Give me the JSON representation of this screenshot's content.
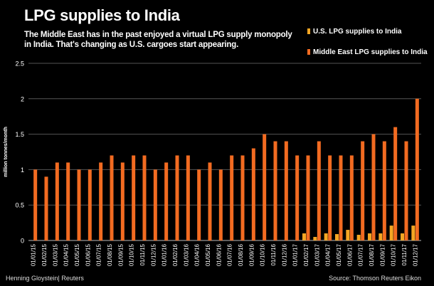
{
  "header": {
    "title": "LPG supplies to India",
    "subtitle": "The Middle East has in the past enjoyed a virtual LPG supply monopoly in India. That's changing as U.S. cargoes start appearing."
  },
  "legend": {
    "items": [
      {
        "label": "U.S. LPG supplies to India",
        "color": "#f5a623"
      },
      {
        "label": "Middle East LPG supplies to India",
        "color": "#f26b21"
      }
    ]
  },
  "footer": {
    "author": "Henning Gloystein| Reuters",
    "source": "Source: Thomson Reuters Eikon"
  },
  "chart_data": {
    "type": "bar",
    "ylabel": "million tonnes/month",
    "ylim": [
      0,
      2.5
    ],
    "yticks": [
      "0",
      "0.5",
      "1",
      "1.5",
      "2",
      "2.5"
    ],
    "grid": true,
    "legend_position": "top-right",
    "categories": [
      "01/01/15",
      "01/02/15",
      "01/03/15",
      "01/04/15",
      "01/05/15",
      "01/06/15",
      "01/07/15",
      "01/08/15",
      "01/09/15",
      "01/10/15",
      "01/11/15",
      "01/12/15",
      "01/01/16",
      "01/02/16",
      "01/03/16",
      "01/04/16",
      "01/05/16",
      "01/06/16",
      "01/07/16",
      "01/08/16",
      "01/09/16",
      "01/10/16",
      "01/11/16",
      "01/12/16",
      "01/01/17",
      "01/02/17",
      "01/03/17",
      "01/04/17",
      "01/05/17",
      "01/06/17",
      "01/07/17",
      "01/08/17",
      "01/09/17",
      "01/10/17",
      "01/11/17",
      "01/12/17"
    ],
    "series": [
      {
        "name": "U.S. LPG supplies to India",
        "color": "#f5a623",
        "values": [
          0,
          0,
          0,
          0,
          0,
          0,
          0,
          0,
          0,
          0,
          0,
          0,
          0,
          0,
          0,
          0,
          0,
          0,
          0,
          0,
          0,
          0,
          0,
          0,
          0,
          0.1,
          0.05,
          0.1,
          0.09,
          0.15,
          0.08,
          0.1,
          0.1,
          0.21,
          0.1,
          0.21
        ]
      },
      {
        "name": "Middle East LPG supplies to India",
        "color": "#f26b21",
        "values": [
          1.0,
          0.9,
          1.1,
          1.1,
          1.0,
          1.0,
          1.1,
          1.2,
          1.1,
          1.2,
          1.2,
          1.0,
          1.1,
          1.2,
          1.2,
          1.0,
          1.1,
          1.0,
          1.2,
          1.2,
          1.3,
          1.5,
          1.4,
          1.4,
          1.2,
          1.2,
          1.4,
          1.2,
          1.2,
          1.2,
          1.4,
          1.5,
          1.4,
          1.6,
          1.4,
          2.0
        ]
      }
    ]
  }
}
